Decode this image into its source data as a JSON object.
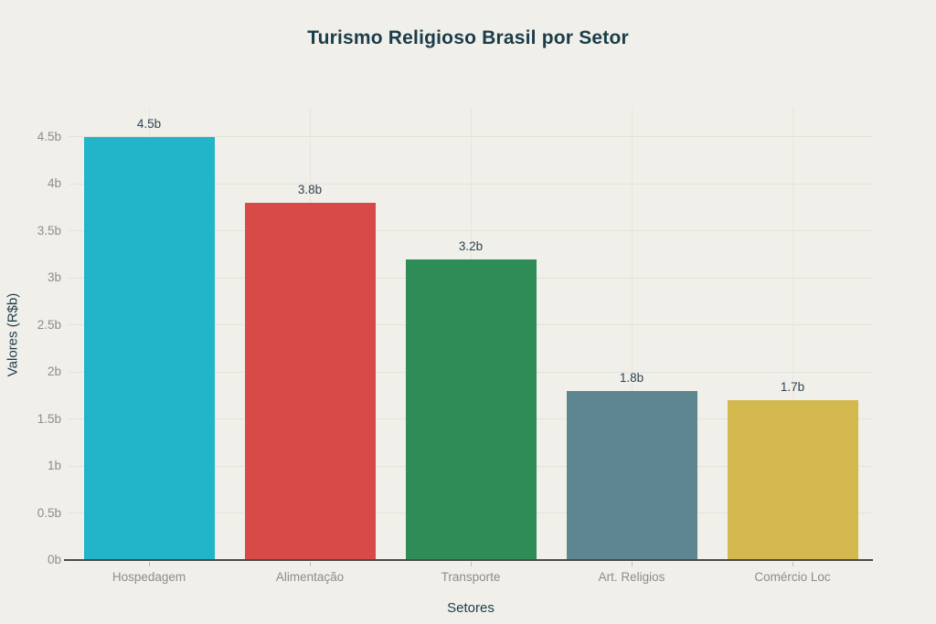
{
  "title": "Turismo Religioso Brasil por Setor",
  "chart_data": {
    "type": "bar",
    "title": "Turismo Religioso Brasil por Setor",
    "xlabel": "Setores",
    "ylabel": "Valores (R$b)",
    "categories": [
      "Hospedagem",
      "Alimentação",
      "Transporte",
      "Art. Religios",
      "Comércio Loc"
    ],
    "values": [
      4.5,
      3.8,
      3.2,
      1.8,
      1.7
    ],
    "bar_value_labels": [
      "4.5b",
      "3.8b",
      "3.2b",
      "1.8b",
      "1.7b"
    ],
    "bar_colors": [
      "#22b5c9",
      "#d84a47",
      "#2e8c57",
      "#5e8690",
      "#d2b84d"
    ],
    "ytick_values": [
      0,
      0.5,
      1,
      1.5,
      2,
      2.5,
      3,
      3.5,
      4,
      4.5
    ],
    "ytick_labels": [
      "0b",
      "0.5b",
      "1b",
      "1.5b",
      "2b",
      "2.5b",
      "3b",
      "3.5b",
      "4b",
      "4.5b"
    ],
    "ylim": [
      0,
      4.8
    ],
    "grid": true,
    "legend": false
  },
  "colors": {
    "background": "#f0efe9",
    "title_text": "#1b3c4a",
    "axis_title_text": "#1b3c4a",
    "tick_text": "#8c8c8c",
    "value_label_text": "#2f4455",
    "axis_line": "#4a4a4a",
    "gridline": "#e3e2da"
  }
}
